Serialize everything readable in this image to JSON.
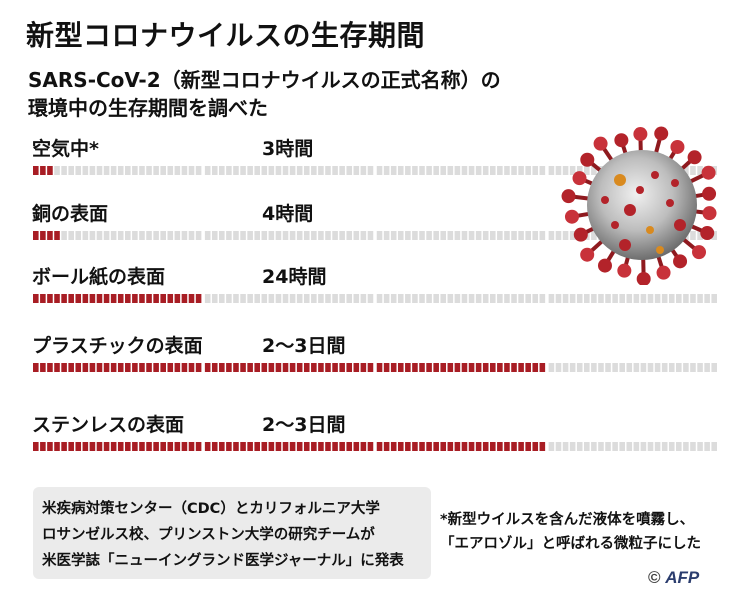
{
  "title": "新型コロナウイルスの生存期間",
  "subtitle": {
    "line1": "SARS-CoV-2（新型コロナウイルスの正式名称）の",
    "line2": "環境中の生存期間を調べた"
  },
  "colors": {
    "filled": "#a81d24",
    "empty": "#dcdcdc",
    "note_bg": "#ebebeb"
  },
  "rows": [
    {
      "label": "空気中*",
      "duration": "3時間",
      "hours": 3
    },
    {
      "label": "銅の表面",
      "duration": "4時間",
      "hours": 4
    },
    {
      "label": "ボール紙の表面",
      "duration": "24時間",
      "hours": 24
    },
    {
      "label": "プラスチックの表面",
      "duration": "2〜3日間",
      "hours": 72
    },
    {
      "label": "ステンレスの表面",
      "duration": "2〜3日間",
      "hours": 72
    }
  ],
  "bar_scale": {
    "hours_per_segment": 1,
    "total_segments": 96,
    "segments_per_group": 24
  },
  "note": {
    "line1": "米疾病対策センター（CDC）とカリフォルニア大学",
    "line2": "ロサンゼルス校、プリンストン大学の研究チームが",
    "line3": "米医学誌「ニューイングランド医学ジャーナル」に発表"
  },
  "footnote": {
    "line1": "*新型ウイルスを含んだ液体を噴霧し、",
    "line2": "「エアロゾル」と呼ばれる微粒子にした"
  },
  "credit": {
    "symbol": "©",
    "brand": "AFP"
  },
  "image": {
    "icon": "coronavirus-illustration"
  }
}
